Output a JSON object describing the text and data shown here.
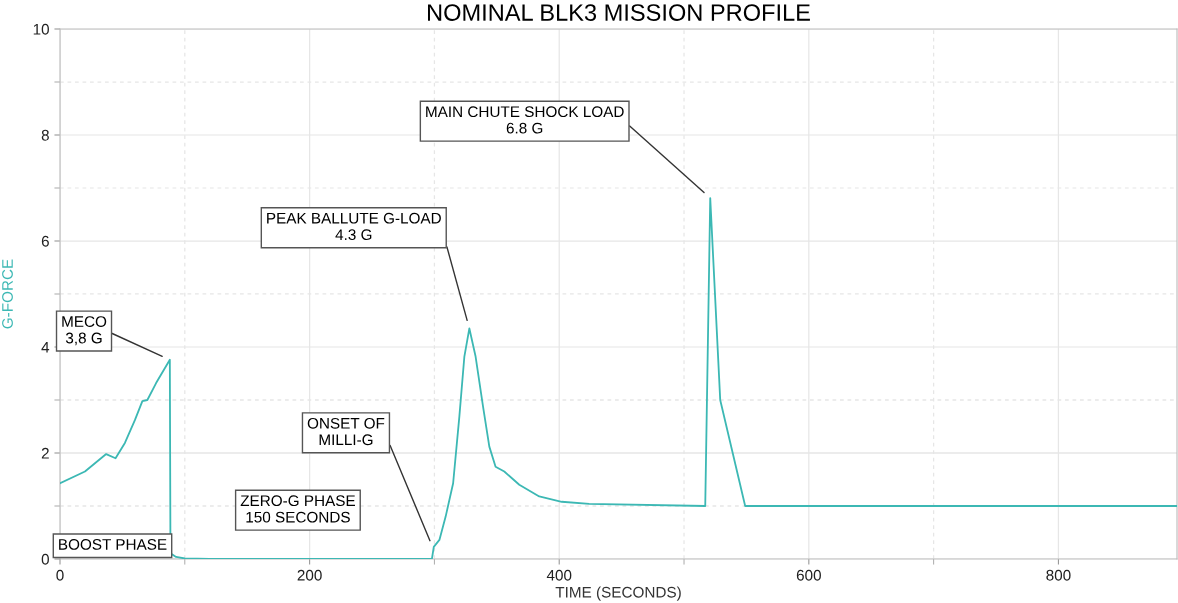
{
  "chart_data": {
    "type": "line",
    "title": "NOMINAL BLK3 MISSION PROFILE",
    "xlabel": "TIME (SECONDS)",
    "ylabel": "G-FORCE",
    "xlim": [
      0,
      895
    ],
    "ylim": [
      0,
      10
    ],
    "xticks": [
      0,
      {
        "value": 100,
        "label": null
      },
      200,
      {
        "value": 300,
        "label": null
      },
      400,
      {
        "value": 500,
        "label": null
      },
      600,
      {
        "value": 700,
        "label": null
      },
      800
    ],
    "yticks": [
      0,
      {
        "value": 1,
        "label": null
      },
      2,
      {
        "value": 3,
        "label": null
      },
      4,
      {
        "value": 5,
        "label": null
      },
      6,
      {
        "value": 7,
        "label": null
      },
      8,
      {
        "value": 9,
        "label": null
      },
      10
    ],
    "grid": true,
    "marker": "none",
    "line_style": "solid",
    "series": [
      {
        "color": "#3cb8b4",
        "x": [
          0,
          20,
          37,
          44.5,
          52,
          60,
          66,
          70,
          77,
          88,
          88.5,
          93,
          100,
          120,
          298,
          299.5,
          304,
          309,
          315,
          320,
          324,
          328,
          333,
          339,
          344,
          349,
          356,
          368,
          384,
          402,
          424,
          517,
          521,
          529,
          549,
          895
        ],
        "values": [
          1.43,
          1.65,
          1.98,
          1.9,
          2.19,
          2.62,
          2.98,
          3.0,
          3.32,
          3.76,
          0.11,
          0.04,
          0.01,
          0,
          0,
          0.23,
          0.36,
          0.8,
          1.43,
          2.69,
          3.82,
          4.35,
          3.82,
          2.87,
          2.12,
          1.74,
          1.65,
          1.4,
          1.18,
          1.08,
          1.04,
          1.0,
          6.81,
          3.0,
          1.0,
          1.0
        ]
      }
    ],
    "annotations": [
      {
        "text": "MECO\n3,8 G",
        "x": 88,
        "y": 3.76
      },
      "BOOST PHASE",
      "ZERO-G PHASE\n150 SECONDS",
      {
        "text": "ONSET OF\nMILLI-G",
        "x": 299,
        "y": 0.2
      },
      {
        "text": "PEAK BALLUTE G-LOAD\n4.3 G",
        "x": 328,
        "y": 4.35
      },
      {
        "text": "MAIN CHUTE SHOCK LOAD\n6.8 G",
        "x": 521,
        "y": 6.81
      }
    ]
  }
}
